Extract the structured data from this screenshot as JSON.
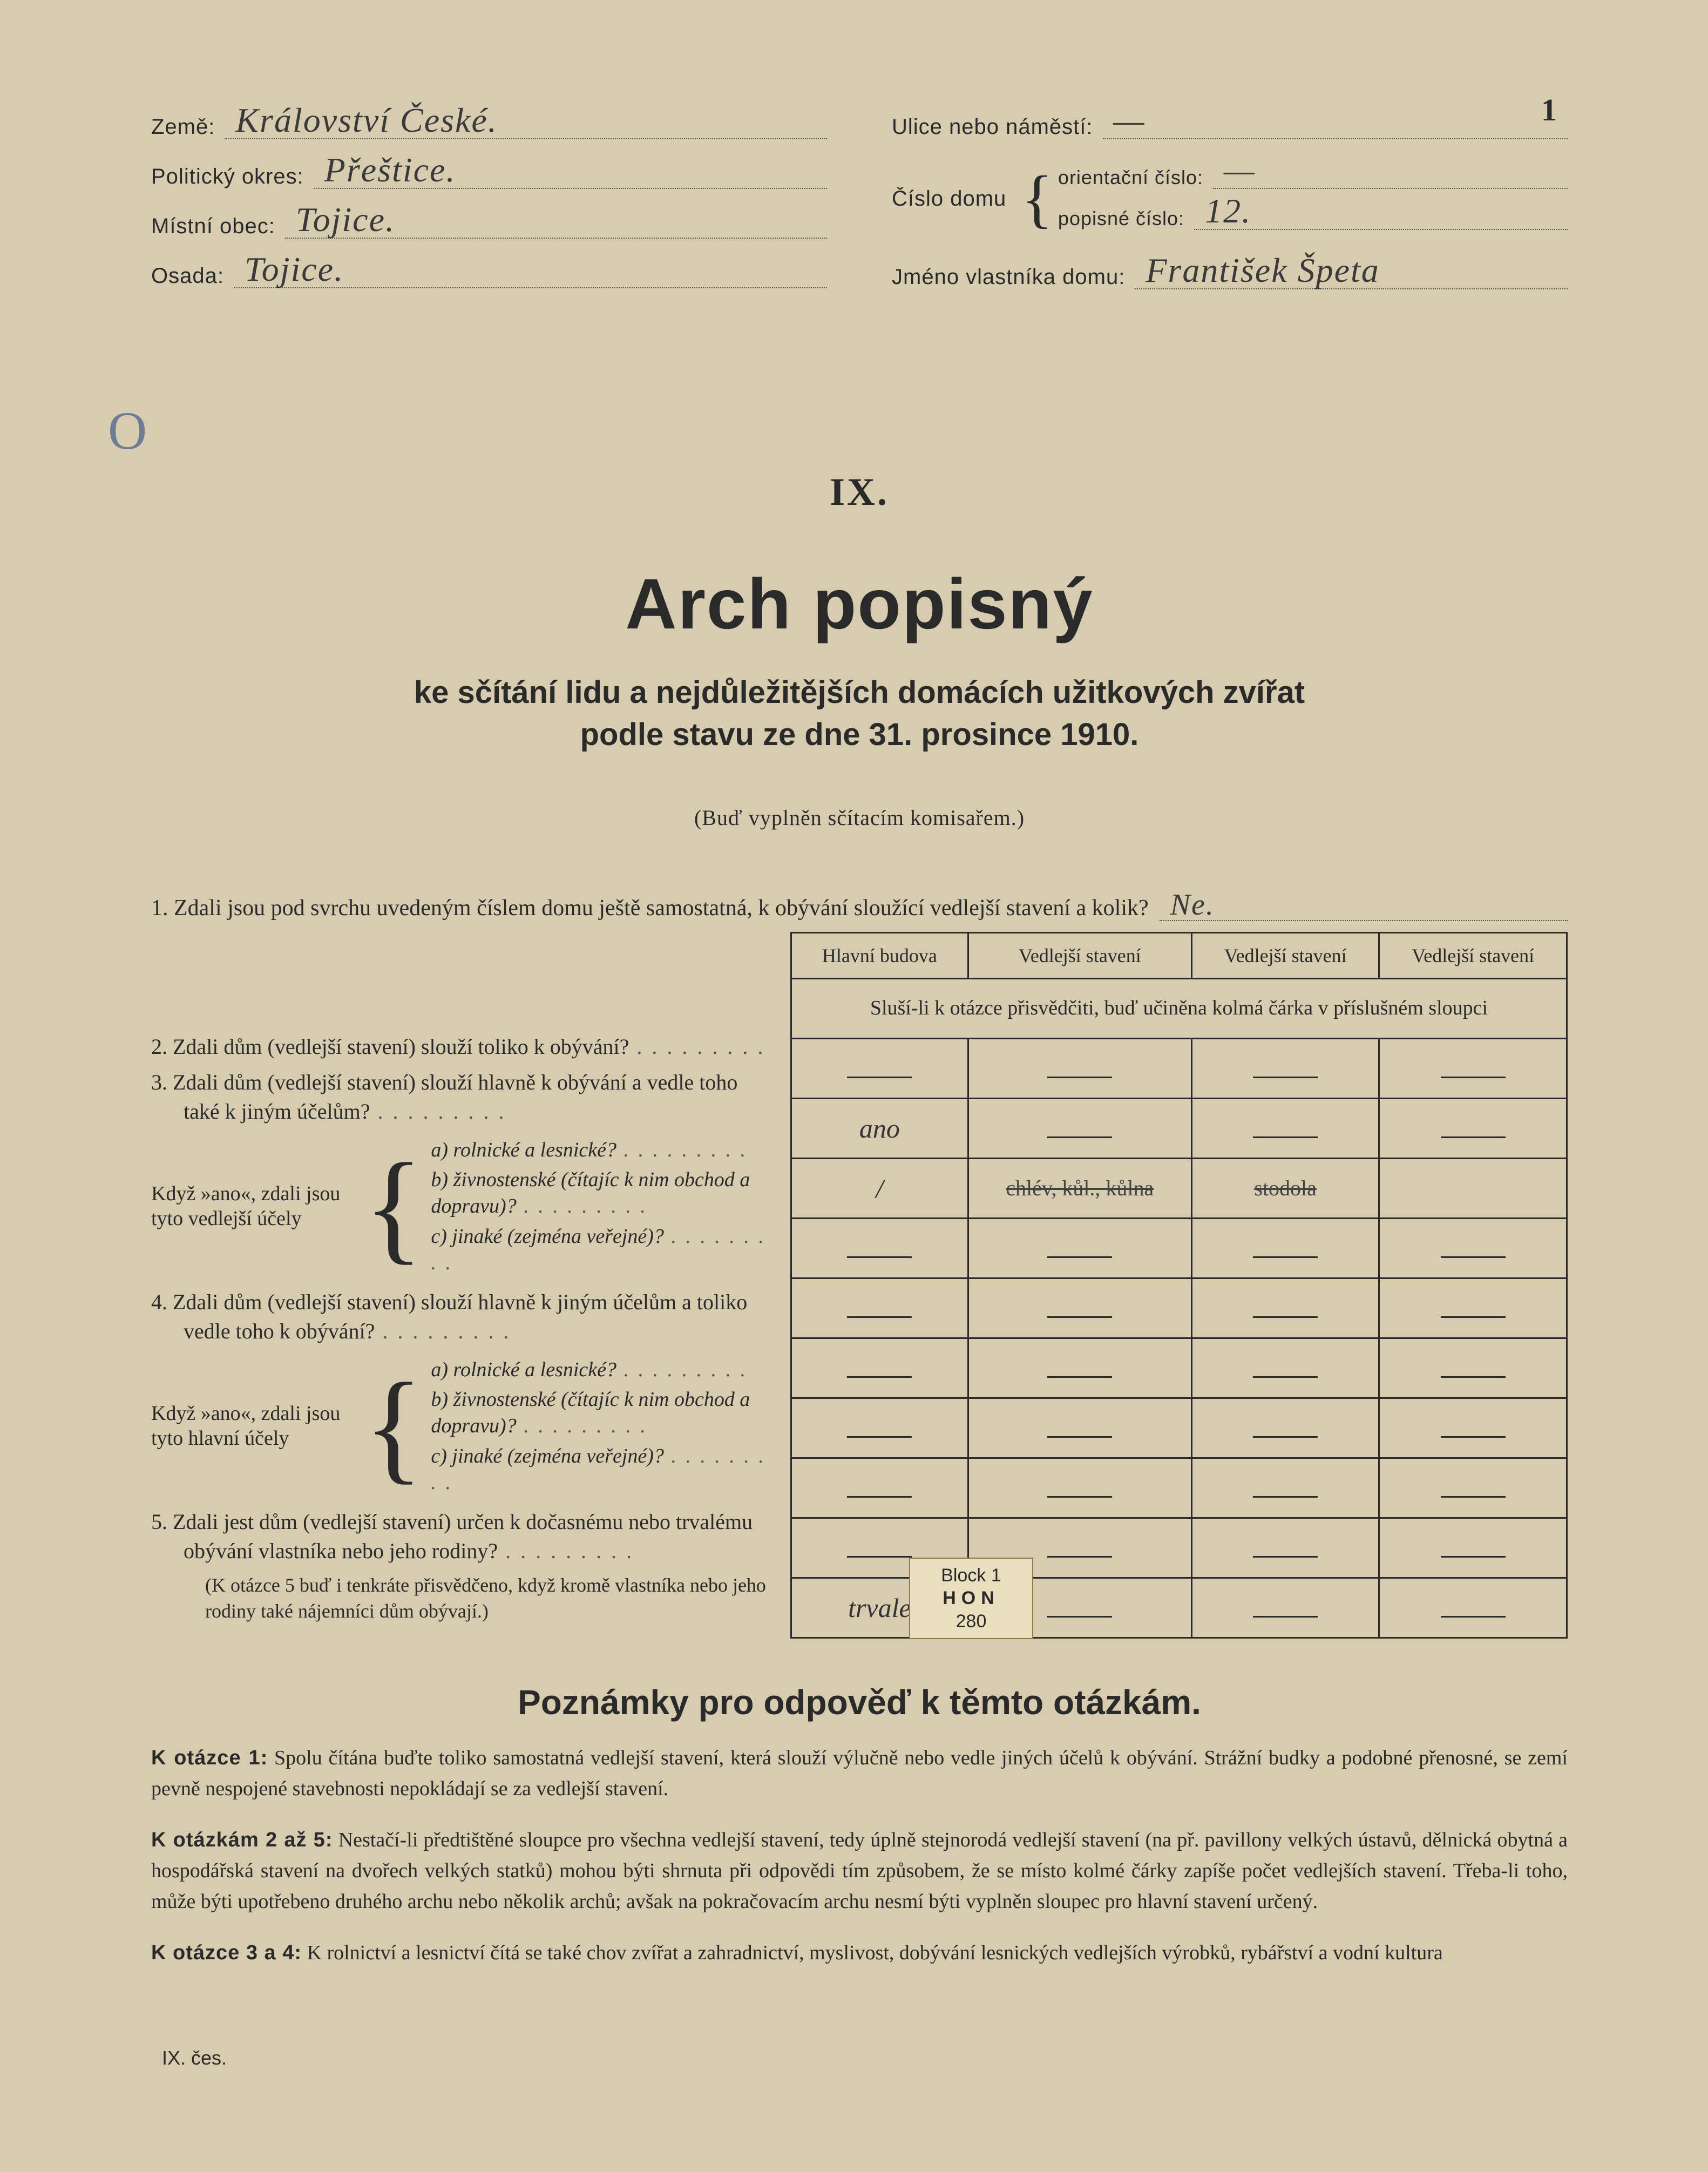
{
  "page_number": "1",
  "header": {
    "left": {
      "zeme_label": "Země:",
      "zeme_value": "Království České.",
      "okres_label": "Politický okres:",
      "okres_value": "Přeštice.",
      "obec_label": "Místní obec:",
      "obec_value": "Tojice.",
      "osada_label": "Osada:",
      "osada_value": "Tojice."
    },
    "right": {
      "ulice_label": "Ulice nebo náměstí:",
      "ulice_value": "—",
      "cislo_domu_label": "Číslo domu",
      "orient_label": "orientační číslo:",
      "orient_value": "—",
      "popisne_label": "popisné číslo:",
      "popisne_value": "12.",
      "vlastnik_label": "Jméno vlastníka domu:",
      "vlastnik_value": "František Špeta"
    }
  },
  "margin_mark": "O",
  "title": {
    "roman": "IX.",
    "main": "Arch popisný",
    "sub1": "ke sčítání lidu a nejdůležitějších domácích užitkových zvířat",
    "sub2": "podle stavu ze dne 31. prosince 1910.",
    "note": "(Buď vyplněn sčítacím komisařem.)"
  },
  "q1": {
    "text": "1. Zdali jsou pod svrchu uvedeným číslem domu ještě samostatná, k obývání sloužící vedlejší stavení a kolik?",
    "answer": "Ne."
  },
  "table": {
    "headers": [
      "Hlavní budova",
      "Vedlejší stavení",
      "Vedlejší stavení",
      "Vedlejší stavení"
    ],
    "subhead": "Sluší-li k otázce přisvědčiti, buď učiněna kolmá čárka v příslušném sloupci",
    "rows": [
      {
        "c": [
          "—",
          "—",
          "—",
          "—"
        ]
      },
      {
        "c": [
          "ano",
          "—",
          "—",
          "—"
        ],
        "hand0": true
      },
      {
        "c": [
          "/",
          "chlév, kůl., kůlna",
          "stodola",
          ""
        ],
        "hand0": true,
        "strike1": true,
        "strike2": true
      },
      {
        "c": [
          "—",
          "—",
          "—",
          "—"
        ]
      },
      {
        "c": [
          "—",
          "—",
          "—",
          "—"
        ]
      },
      {
        "c": [
          "—",
          "—",
          "—",
          "—"
        ]
      },
      {
        "c": [
          "—",
          "—",
          "—",
          "—"
        ]
      },
      {
        "c": [
          "—",
          "—",
          "—",
          "—"
        ]
      },
      {
        "c": [
          "—",
          "—",
          "—",
          "—"
        ]
      },
      {
        "c": [
          "trvale",
          "—",
          "—",
          "—"
        ],
        "hand0": true
      }
    ]
  },
  "questions": {
    "q2": "2. Zdali dům (vedlejší stavení) slouží toliko k obývání?",
    "q3": "3. Zdali dům (vedlejší stavení) slouží hlavně k obývání a vedle toho také k jiným účelům?",
    "sub_group_a_label": "Když »ano«, zdali jsou tyto vedlejší účely",
    "opt_a": "a) rolnické a lesnické?",
    "opt_b": "b) živnostenské (čítajíc k nim obchod a dopravu)?",
    "opt_c": "c) jinaké (zejména veřejné)?",
    "q4": "4. Zdali dům (vedlejší stavení) slouží hlavně k jiným účelům a toliko vedle toho k obývání?",
    "sub_group_b_label": "Když »ano«, zdali jsou tyto hlavní účely",
    "q5": "5. Zdali jest dům (vedlejší stavení) určen k dočasnému nebo trvalému obývání vlastníka nebo jeho rodiny?",
    "q5_note": "(K otázce 5 buď i tenkráte přisvědčeno, když kromě vlastníka nebo jeho rodiny také nájemníci dům obývají.)"
  },
  "section2_title": "Poznámky pro odpověď k těmto otázkám.",
  "notes": {
    "n1_lead": "K otázce 1:",
    "n1": "Spolu čítána buďte toliko samostatná vedlejší stavení, která slouží výlučně nebo vedle jiných účelů k obývání. Strážní budky a podobné přenosné, se zemí pevně nespojené stavebnosti nepokládají se za vedlejší stavení.",
    "n2_lead": "K otázkám 2 až 5:",
    "n2": "Nestačí-li předtištěné sloupce pro všechna vedlejší stavení, tedy úplně stejnorodá vedlejší stavení (na př. pavillony velkých ústavů, dělnická obytná a hospodářská stavení na dvořech velkých statků) mohou býti shrnuta při odpovědi tím způsobem, že se místo kolmé čárky zapíše počet vedlejších stavení. Třeba-li toho, může býti upotřebeno druhého archu nebo několik archů; avšak na pokračovacím archu nesmí býti vyplněn sloupec pro hlavní stavení určený.",
    "n3_lead": "K otázce 3 a 4:",
    "n3": "K rolnictví a lesnictví čítá se také chov zvířat a zahradnictví, myslivost, dobývání lesnických vedlejších výrobků, rybářství a vodní kultura"
  },
  "stamp": {
    "line1": "Block 1",
    "line2": "HON",
    "line3": "280"
  },
  "footer": "IX. čes."
}
